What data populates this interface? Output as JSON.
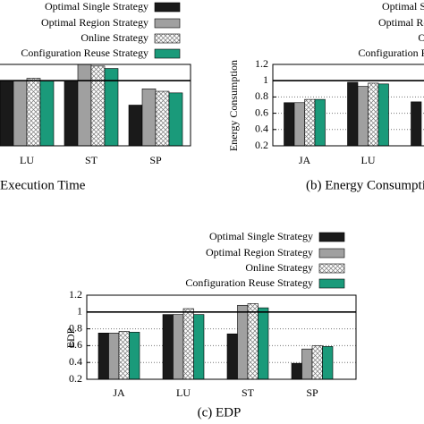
{
  "chart_data": [
    {
      "type": "bar",
      "title": "Execution Time",
      "categories": [
        "LU",
        "ST",
        "SP"
      ],
      "series": [
        {
          "name": "Optimal Single Strategy",
          "color": "#1a1a1a",
          "values": [
            1.0,
            1.0,
            0.7
          ]
        },
        {
          "name": "Optimal Region Strategy",
          "color": "#a0a0a0",
          "values": [
            1.0,
            1.2,
            0.9
          ]
        },
        {
          "name": "Online Strategy",
          "color": "#ffffff",
          "pattern": "crosshatch",
          "values": [
            1.03,
            1.18,
            0.87
          ]
        },
        {
          "name": "Configuration Reuse Strategy",
          "color": "#1a9a7a",
          "values": [
            1.0,
            1.15,
            0.85
          ]
        }
      ],
      "ylim": [
        0.2,
        1.2
      ],
      "grid": false,
      "reference_line": 1
    },
    {
      "type": "bar",
      "title": "(b) Energy Consumption",
      "y_label": "Energy Consumption",
      "categories": [
        "JA",
        "LU",
        null
      ],
      "series": [
        {
          "name": "Optimal Single Strategy",
          "color": "#1a1a1a",
          "values": [
            0.73,
            0.98,
            0.74
          ]
        },
        {
          "name": "Optimal Region Strategy",
          "color": "#a0a0a0",
          "values": [
            0.73,
            0.93,
            null
          ]
        },
        {
          "name": "Online Strategy",
          "color": "#ffffff",
          "pattern": "crosshatch",
          "values": [
            0.77,
            0.97,
            null
          ]
        },
        {
          "name": "Configuration Reuse Strategy",
          "color": "#1a9a7a",
          "values": [
            0.77,
            0.96,
            null
          ]
        }
      ],
      "ylim": [
        0.2,
        1.2
      ],
      "yticks": [
        0.2,
        0.4,
        0.6,
        0.8,
        1,
        1.2
      ],
      "grid": true,
      "reference_line": 1
    },
    {
      "type": "bar",
      "title": "(c) EDP",
      "y_label": "EDP",
      "categories": [
        "JA",
        "LU",
        "ST",
        "SP"
      ],
      "series": [
        {
          "name": "Optimal Single Strategy",
          "color": "#1a1a1a",
          "values": [
            0.75,
            0.97,
            0.74,
            0.39
          ]
        },
        {
          "name": "Optimal Region Strategy",
          "color": "#a0a0a0",
          "values": [
            0.75,
            0.97,
            1.08,
            0.56
          ]
        },
        {
          "name": "Online Strategy",
          "color": "#ffffff",
          "pattern": "crosshatch",
          "values": [
            0.77,
            1.04,
            1.1,
            0.6
          ]
        },
        {
          "name": "Configuration Reuse Strategy",
          "color": "#1a9a7a",
          "values": [
            0.76,
            0.97,
            1.05,
            0.59
          ]
        }
      ],
      "ylim": [
        0.2,
        1.2
      ],
      "yticks": [
        0.2,
        0.4,
        0.6,
        0.8,
        1,
        1.2
      ],
      "grid": true,
      "reference_line": 1
    }
  ]
}
